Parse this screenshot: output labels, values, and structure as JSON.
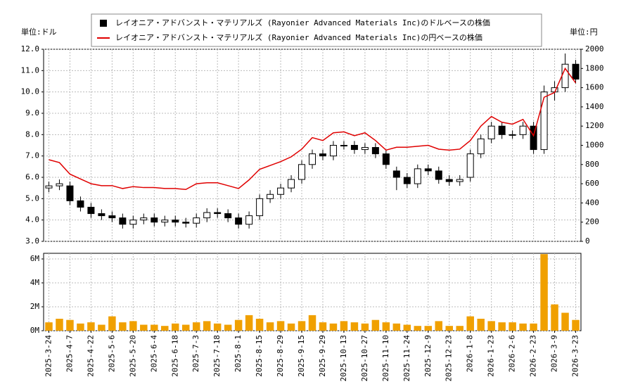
{
  "chart_data": [
    {
      "type": "candlestick",
      "y_unit_label": "単位:ドル",
      "y2_unit_label": "単位:円",
      "grid": true,
      "series": [
        {
          "name": "レイオニア・アドバンスト・マテリアルズ (Rayonier Advanced Materials Inc)のドルベースの株価",
          "color": "#000000",
          "open": [
            5.5,
            5.6,
            5.6,
            4.9,
            4.6,
            4.3,
            4.2,
            4.1,
            3.8,
            4.0,
            4.1,
            3.9,
            4.0,
            3.9,
            3.85,
            4.1,
            4.35,
            4.3,
            4.1,
            3.8,
            4.2,
            5.0,
            5.2,
            5.5,
            5.9,
            6.6,
            7.1,
            7.0,
            7.5,
            7.5,
            7.3,
            7.4,
            7.1,
            6.3,
            6.0,
            5.7,
            6.4,
            6.3,
            5.9,
            5.8,
            6.0,
            7.1,
            7.8,
            8.4,
            8.0,
            8.0,
            8.4,
            7.3,
            10.0,
            10.2,
            11.3
          ],
          "high": [
            5.8,
            5.9,
            5.8,
            5.1,
            4.8,
            4.5,
            4.4,
            4.3,
            4.2,
            4.3,
            4.3,
            4.2,
            4.2,
            4.1,
            4.3,
            4.55,
            4.55,
            4.5,
            4.3,
            4.4,
            5.2,
            5.4,
            5.7,
            6.1,
            6.8,
            7.3,
            7.3,
            7.7,
            7.7,
            7.7,
            7.6,
            7.6,
            7.3,
            6.5,
            6.2,
            6.6,
            6.6,
            6.5,
            6.1,
            6.1,
            7.3,
            8.0,
            8.6,
            8.6,
            8.2,
            8.6,
            8.6,
            10.3,
            10.5,
            11.8,
            11.5
          ],
          "low": [
            5.3,
            5.4,
            4.7,
            4.4,
            4.1,
            4.0,
            3.9,
            3.6,
            3.6,
            3.8,
            3.7,
            3.7,
            3.7,
            3.65,
            3.65,
            3.9,
            4.1,
            3.9,
            3.6,
            3.6,
            4.0,
            4.8,
            5.0,
            5.3,
            5.7,
            6.4,
            6.8,
            6.8,
            7.3,
            7.1,
            7.1,
            6.9,
            6.4,
            5.4,
            5.5,
            5.5,
            6.1,
            5.7,
            5.6,
            5.6,
            5.8,
            6.9,
            7.6,
            7.8,
            7.8,
            7.8,
            7.1,
            7.1,
            9.6,
            10.0,
            10.4
          ],
          "close": [
            5.6,
            5.7,
            4.9,
            4.6,
            4.3,
            4.2,
            4.1,
            3.8,
            4.0,
            4.1,
            3.9,
            4.0,
            3.9,
            3.85,
            4.1,
            4.35,
            4.3,
            4.1,
            3.8,
            4.2,
            5.0,
            5.2,
            5.5,
            5.9,
            6.6,
            7.1,
            7.0,
            7.5,
            7.5,
            7.3,
            7.4,
            7.1,
            6.6,
            6.0,
            5.7,
            6.4,
            6.3,
            5.9,
            5.8,
            5.9,
            7.1,
            7.8,
            8.4,
            8.0,
            8.0,
            8.4,
            7.3,
            10.0,
            10.2,
            11.3,
            10.6
          ]
        },
        {
          "name": "レイオニア・アドバンスト・マテリアルズ (Rayonier Advanced Materials Inc)の円ベースの株価",
          "color": "#e00000",
          "axis": "y2",
          "values": [
            850,
            820,
            700,
            650,
            600,
            580,
            580,
            550,
            570,
            560,
            560,
            550,
            550,
            540,
            600,
            610,
            610,
            580,
            550,
            640,
            750,
            790,
            830,
            880,
            960,
            1080,
            1050,
            1130,
            1140,
            1100,
            1130,
            1050,
            950,
            980,
            980,
            990,
            1000,
            960,
            950,
            960,
            1050,
            1200,
            1300,
            1240,
            1220,
            1270,
            1100,
            1500,
            1550,
            1800,
            1650
          ]
        }
      ],
      "ylim": [
        3,
        12
      ],
      "yticks": [
        {
          "value": 3,
          "label": "3.0"
        },
        {
          "value": 4,
          "label": "4.0"
        },
        {
          "value": 5,
          "label": "5.0"
        },
        {
          "value": 6,
          "label": "6.0"
        },
        {
          "value": 7,
          "label": "7.0"
        },
        {
          "value": 8,
          "label": "8.0"
        },
        {
          "value": 9,
          "label": "9.0"
        },
        {
          "value": 10,
          "label": "10.0"
        },
        {
          "value": 11,
          "label": "11.0"
        },
        {
          "value": 12,
          "label": "12.0"
        }
      ],
      "y2lim": [
        0,
        2000
      ],
      "y2ticks": [
        0,
        200,
        400,
        600,
        800,
        1000,
        1200,
        1400,
        1600,
        1800,
        2000
      ]
    },
    {
      "type": "bar",
      "color": "#f0a000",
      "grid": true,
      "categories": [
        "2025-3-24",
        null,
        "2025-4-7",
        null,
        "2025-4-22",
        null,
        "2025-5-6",
        null,
        "2025-5-20",
        null,
        "2025-6-4",
        null,
        "2025-6-18",
        null,
        "2025-7-3",
        null,
        "2025-7-18",
        null,
        "2025-8-1",
        null,
        "2025-8-15",
        null,
        "2025-8-29",
        null,
        "2025-9-15",
        null,
        "2025-9-29",
        null,
        "2025-10-13",
        null,
        "2025-10-27",
        null,
        "2025-11-10",
        null,
        "2025-11-24",
        null,
        "2025-12-9",
        null,
        "2025-12-23",
        null,
        "2026-1-8",
        null,
        "2026-1-23",
        null,
        "2026-2-6",
        null,
        "2026-2-23",
        null,
        "2026-3-9",
        null,
        "2026-3-23"
      ],
      "values": [
        700000,
        1000000,
        900000,
        600000,
        700000,
        500000,
        1200000,
        700000,
        800000,
        500000,
        500000,
        400000,
        600000,
        500000,
        700000,
        800000,
        600000,
        500000,
        900000,
        1300000,
        1000000,
        700000,
        800000,
        600000,
        800000,
        1300000,
        700000,
        600000,
        800000,
        700000,
        600000,
        900000,
        700000,
        600000,
        500000,
        400000,
        400000,
        800000,
        400000,
        400000,
        1200000,
        1000000,
        800000,
        700000,
        700000,
        600000,
        600000,
        6400000,
        2200000,
        1500000,
        900000
      ],
      "ylim": [
        0,
        6470000
      ],
      "yticks": [
        {
          "value": 0,
          "label": "0M"
        },
        {
          "value": 2000000,
          "label": "2M"
        },
        {
          "value": 4000000,
          "label": "4M"
        },
        {
          "value": 6000000,
          "label": "6M"
        }
      ]
    }
  ]
}
